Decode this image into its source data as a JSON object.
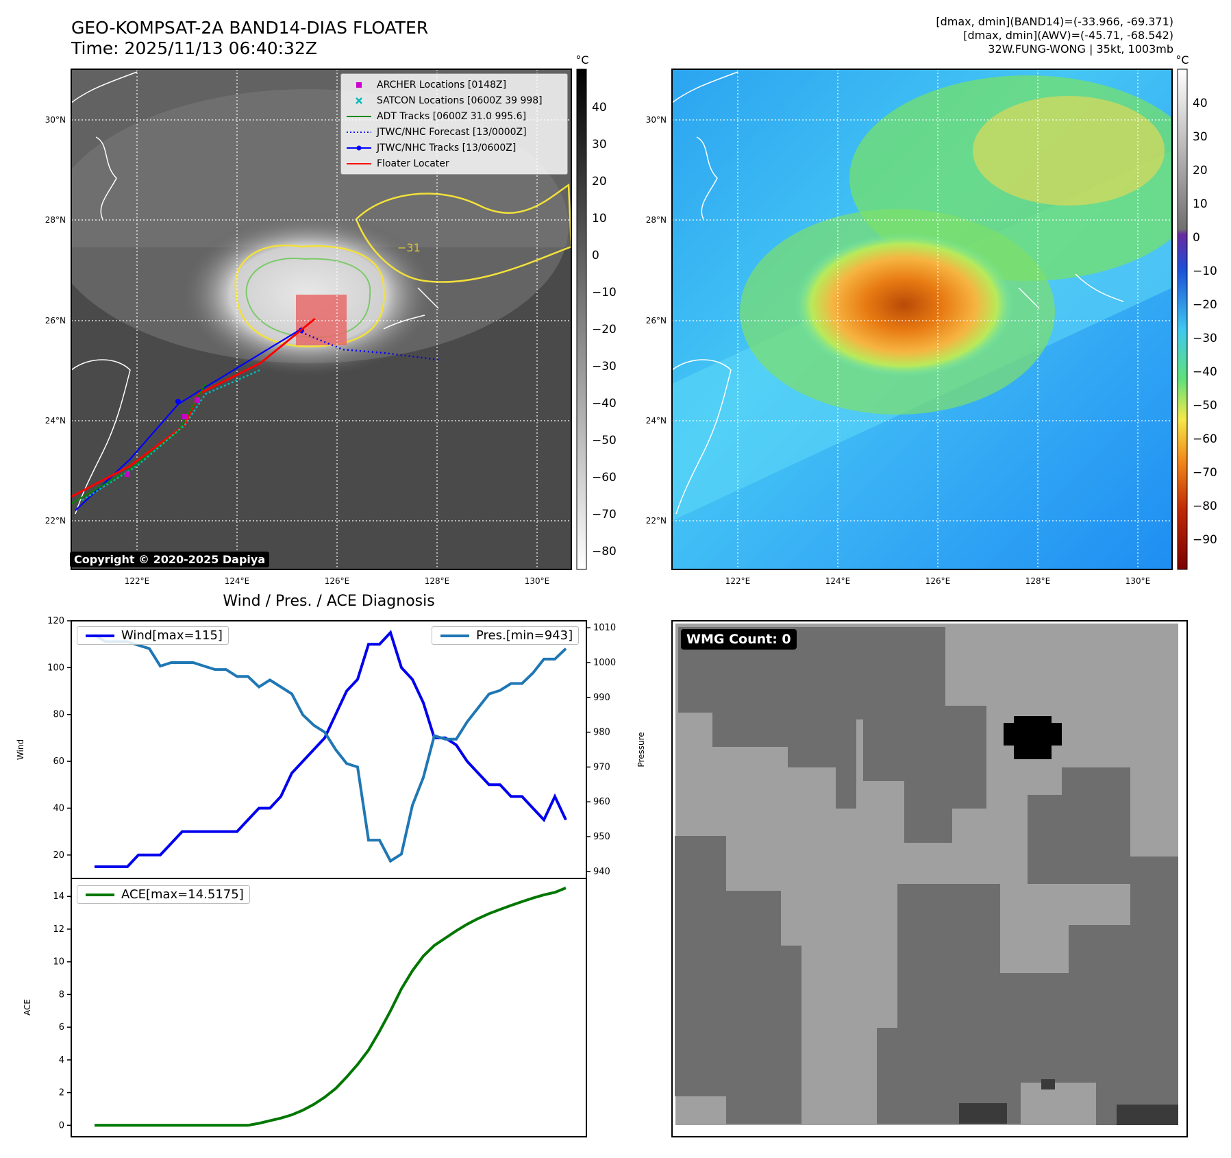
{
  "header": {
    "title_line1": "GEO-KOMPSAT-2A BAND14-DIAS FLOATER",
    "title_line2": "Time: 2025/11/13 06:40:32Z",
    "stats_line1": "[dmax, dmin](BAND14)=(-33.966, -69.371)",
    "stats_line2": "[dmax, dmin](AWV)=(-45.71, -68.542)",
    "stats_line3": "32W.FUNG-WONG | 35kt, 1003mb"
  },
  "map_panel_left": {
    "colorbar_unit": "°C",
    "colorbar_ticks": [
      "40",
      "30",
      "20",
      "10",
      "0",
      "−10",
      "−20",
      "−30",
      "−40",
      "−50",
      "−60",
      "−70",
      "−80"
    ],
    "lat_labels": [
      "30°N",
      "28°N",
      "26°N",
      "24°N",
      "22°N"
    ],
    "lon_labels": [
      "122°E",
      "124°E",
      "126°E",
      "128°E",
      "130°E"
    ],
    "contour_label": "−31",
    "copyright": "Copyright © 2020-2025 Dapiya",
    "legend": [
      {
        "label": "ARCHER Locations [0148Z]",
        "color": "#cc00cc",
        "marker": "square"
      },
      {
        "label": "SATCON Locations [0600Z 39 998]",
        "color": "#00b8b8",
        "marker": "x"
      },
      {
        "label": "ADT Tracks [0600Z 31.0 995.6]",
        "color": "#008800",
        "marker": "line"
      },
      {
        "label": "JTWC/NHC Forecast [13/0000Z]",
        "color": "#0000ff",
        "marker": "dotted"
      },
      {
        "label": "JTWC/NHC Tracks [13/0600Z]",
        "color": "#0000ff",
        "marker": "line-dot"
      },
      {
        "label": "Floater Locater",
        "color": "#ff0000",
        "marker": "line"
      }
    ]
  },
  "map_panel_right": {
    "colorbar_unit": "°C",
    "colorbar_ticks": [
      "40",
      "30",
      "20",
      "10",
      "0",
      "−10",
      "−20",
      "−30",
      "−40",
      "−50",
      "−60",
      "−70",
      "−80",
      "−90"
    ],
    "lat_labels": [
      "30°N",
      "28°N",
      "26°N",
      "24°N",
      "22°N"
    ],
    "lon_labels": [
      "122°E",
      "124°E",
      "126°E",
      "128°E",
      "130°E"
    ]
  },
  "diagnosis_title": "Wind / Pres. / ACE Diagnosis",
  "wmg_panel": {
    "label": "WMG Count: 0"
  },
  "chart_data": [
    {
      "type": "line",
      "title": "Wind / Pres. / ACE Diagnosis",
      "ylabel": "Wind",
      "y2label": "Pressure",
      "ylim": [
        10,
        120
      ],
      "y2lim": [
        938,
        1012
      ],
      "yticks": [
        20,
        40,
        60,
        80,
        100,
        120
      ],
      "y2ticks": [
        940,
        950,
        960,
        970,
        980,
        990,
        1000,
        1010
      ],
      "x": [
        0,
        1,
        2,
        3,
        4,
        5,
        6,
        7,
        8,
        9,
        10,
        11,
        12,
        13,
        14,
        15,
        16,
        17,
        18,
        19,
        20,
        21,
        22,
        23,
        24,
        25,
        26,
        27,
        28,
        29,
        30,
        31,
        32,
        33,
        34,
        35,
        36,
        37,
        38,
        39,
        40,
        41,
        42,
        43
      ],
      "series": [
        {
          "name": "Wind[max=115]",
          "color": "#0000ee",
          "axis": "left",
          "values": [
            15,
            15,
            15,
            15,
            20,
            20,
            20,
            25,
            30,
            30,
            30,
            30,
            30,
            30,
            35,
            40,
            40,
            45,
            55,
            60,
            65,
            70,
            80,
            90,
            95,
            110,
            110,
            115,
            100,
            95,
            85,
            70,
            70,
            67,
            60,
            55,
            50,
            50,
            45,
            45,
            40,
            35,
            45,
            35
          ]
        },
        {
          "name": "Pres.[min=943]",
          "color": "#1f77b4",
          "axis": "right",
          "values": [
            1008,
            1006,
            1006,
            1006,
            1005,
            1004,
            999,
            1000,
            1000,
            1000,
            999,
            998,
            998,
            996,
            996,
            993,
            995,
            993,
            991,
            985,
            982,
            980,
            975,
            971,
            970,
            949,
            949,
            943,
            945,
            959,
            967,
            979,
            978,
            978,
            983,
            987,
            991,
            992,
            994,
            994,
            997,
            1001,
            1001,
            1004
          ]
        }
      ]
    },
    {
      "type": "line",
      "ylabel": "ACE",
      "ylim": [
        -0.7,
        15.1
      ],
      "yticks": [
        0,
        2,
        4,
        6,
        8,
        10,
        12,
        14
      ],
      "x": [
        0,
        1,
        2,
        3,
        4,
        5,
        6,
        7,
        8,
        9,
        10,
        11,
        12,
        13,
        14,
        15,
        16,
        17,
        18,
        19,
        20,
        21,
        22,
        23,
        24,
        25,
        26,
        27,
        28,
        29,
        30,
        31,
        32,
        33,
        34,
        35,
        36,
        37,
        38,
        39,
        40,
        41,
        42,
        43
      ],
      "series": [
        {
          "name": "ACE[max=14.5175]",
          "color": "#007700",
          "values": [
            0,
            0,
            0,
            0,
            0,
            0,
            0,
            0,
            0,
            0,
            0,
            0,
            0,
            0,
            0,
            0.12,
            0.28,
            0.44,
            0.64,
            0.92,
            1.28,
            1.72,
            2.25,
            2.95,
            3.72,
            4.6,
            5.75,
            7.0,
            8.35,
            9.45,
            10.35,
            11.0,
            11.45,
            11.9,
            12.3,
            12.65,
            12.95,
            13.2,
            13.45,
            13.68,
            13.9,
            14.1,
            14.25,
            14.5175
          ]
        }
      ]
    }
  ]
}
